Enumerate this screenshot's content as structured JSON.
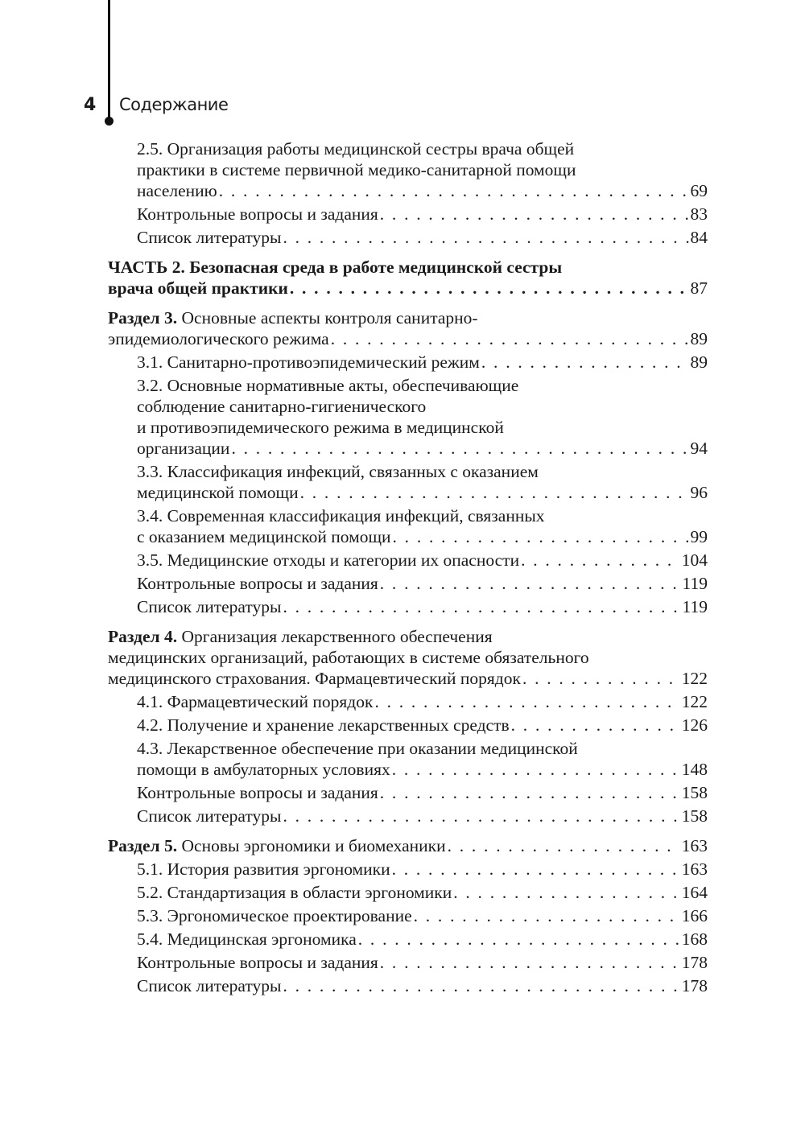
{
  "header": {
    "page_number": "4",
    "running_title": "Содержание"
  },
  "toc": [
    {
      "entries": [
        {
          "sub": true,
          "lines": [
            "2.5. Организация работы медицинской сестры врача общей",
            "практики в системе первичной медико-санитарной помощи",
            "населению"
          ],
          "page": "69"
        },
        {
          "sub": true,
          "lines": [
            "Контрольные вопросы и задания"
          ],
          "page": "83"
        },
        {
          "sub": true,
          "lines": [
            "Список литературы"
          ],
          "page": "84"
        }
      ]
    },
    {
      "entries": [
        {
          "sub": false,
          "label": "",
          "bold_all": true,
          "lines": [
            "ЧАСТЬ 2. Безопасная среда в работе медицинской сестры",
            "врача общей практики"
          ],
          "page": "87"
        }
      ]
    },
    {
      "entries": [
        {
          "sub": false,
          "label": "Раздел 3.",
          "lines": [
            " Основные аспекты контроля санитарно-",
            "эпидемиологического режима"
          ],
          "page": "89"
        },
        {
          "sub": true,
          "lines": [
            "3.1. Санитарно-противоэпидемический режим"
          ],
          "page": "89"
        },
        {
          "sub": true,
          "lines": [
            "3.2. Основные нормативные акты, обеспечивающие",
            "соблюдение санитарно-гигиенического",
            "и противоэпидемического режима в медицинской",
            "организации"
          ],
          "page": "94"
        },
        {
          "sub": true,
          "lines": [
            "3.3. Классификация инфекций, связанных с оказанием",
            "медицинской помощи"
          ],
          "page": "96"
        },
        {
          "sub": true,
          "lines": [
            "3.4. Современная классификация инфекций, связанных",
            "с оказанием медицинской помощи"
          ],
          "page": "99"
        },
        {
          "sub": true,
          "lines": [
            "3.5. Медицинские отходы и категории их опасности"
          ],
          "page": "104"
        },
        {
          "sub": true,
          "lines": [
            "Контрольные вопросы и задания"
          ],
          "page": "119"
        },
        {
          "sub": true,
          "lines": [
            "Список литературы"
          ],
          "page": "119"
        }
      ]
    },
    {
      "entries": [
        {
          "sub": false,
          "label": "Раздел 4.",
          "lines": [
            " Организация лекарственного обеспечения",
            "медицинских организаций, работающих в системе обязательного",
            "медицинского страхования. Фармацевтический порядок"
          ],
          "page": "122"
        },
        {
          "sub": true,
          "lines": [
            "4.1. Фармацевтический порядок"
          ],
          "page": "122"
        },
        {
          "sub": true,
          "lines": [
            "4.2. Получение и хранение лекарственных средств"
          ],
          "page": "126"
        },
        {
          "sub": true,
          "lines": [
            "4.3. Лекарственное обеспечение при оказании медицинской",
            "помощи в амбулаторных условиях"
          ],
          "page": "148"
        },
        {
          "sub": true,
          "lines": [
            "Контрольные вопросы и задания"
          ],
          "page": "158"
        },
        {
          "sub": true,
          "lines": [
            "Список литературы"
          ],
          "page": "158"
        }
      ]
    },
    {
      "entries": [
        {
          "sub": false,
          "label": "Раздел 5.",
          "lines": [
            " Основы эргономики и биомеханики"
          ],
          "page": "163"
        },
        {
          "sub": true,
          "lines": [
            "5.1. История развития эргономики"
          ],
          "page": "163"
        },
        {
          "sub": true,
          "lines": [
            "5.2. Стандартизация в области эргономики"
          ],
          "page": "164"
        },
        {
          "sub": true,
          "lines": [
            "5.3. Эргономическое проектирование"
          ],
          "page": "166"
        },
        {
          "sub": true,
          "lines": [
            "5.4. Медицинская эргономика"
          ],
          "page": "168"
        },
        {
          "sub": true,
          "lines": [
            "Контрольные вопросы и задания"
          ],
          "page": "178"
        },
        {
          "sub": true,
          "lines": [
            "Список литературы"
          ],
          "page": "178"
        }
      ]
    }
  ]
}
